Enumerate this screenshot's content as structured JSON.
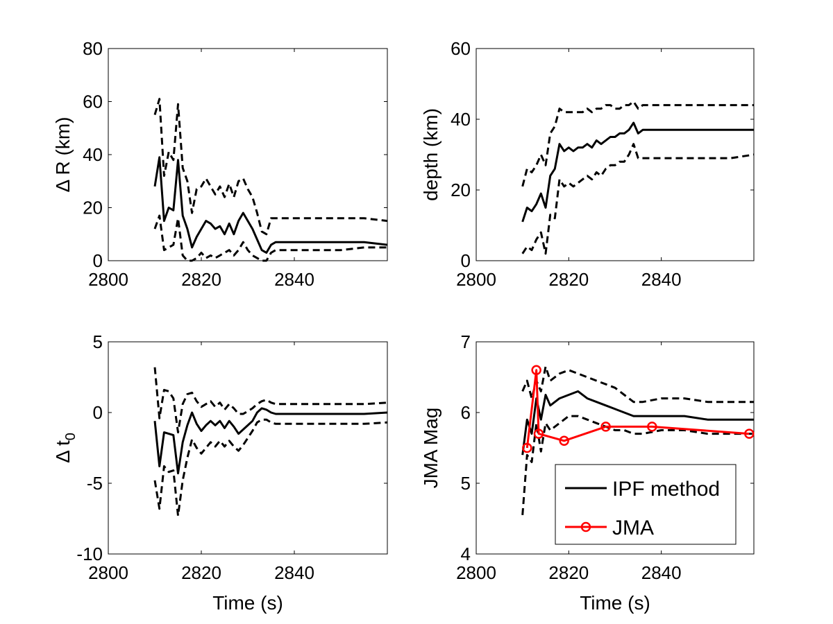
{
  "chart_data": [
    {
      "type": "line",
      "xlabel": "",
      "ylabel": "Δ R (km)",
      "xlim": [
        2800,
        2860
      ],
      "ylim": [
        0,
        80
      ],
      "xticks": [
        2800,
        2820,
        2840
      ],
      "yticks": [
        0,
        20,
        40,
        60,
        80
      ],
      "ytick_labels": [
        "0",
        "20",
        "40",
        "60",
        "80"
      ],
      "series": [
        {
          "style": "solid",
          "x": [
            2810,
            2811,
            2812,
            2813,
            2814,
            2815,
            2816,
            2817,
            2818,
            2819,
            2820,
            2821,
            2822,
            2823,
            2824,
            2825,
            2826,
            2827,
            2828,
            2829,
            2830,
            2831,
            2832,
            2833,
            2834,
            2835,
            2836,
            2840,
            2845,
            2850,
            2855,
            2860
          ],
          "y": [
            28,
            39,
            15,
            20,
            19,
            38,
            17,
            12,
            5,
            9,
            12,
            15,
            14,
            12,
            13,
            10,
            14,
            10,
            15,
            18,
            15,
            12,
            8,
            4,
            3,
            6,
            7,
            7,
            7,
            7,
            7,
            6
          ]
        },
        {
          "style": "dashed",
          "x": [
            2810,
            2811,
            2812,
            2813,
            2814,
            2815,
            2816,
            2817,
            2818,
            2819,
            2820,
            2821,
            2822,
            2823,
            2824,
            2825,
            2826,
            2827,
            2828,
            2829,
            2830,
            2831,
            2832,
            2833,
            2834,
            2835,
            2836,
            2840,
            2845,
            2850,
            2855,
            2860
          ],
          "y": [
            55,
            61,
            32,
            41,
            38,
            59,
            35,
            30,
            18,
            27,
            28,
            31,
            28,
            25,
            28,
            24,
            29,
            24,
            30,
            31,
            27,
            24,
            18,
            11,
            10,
            16,
            16,
            16,
            16,
            16,
            16,
            15
          ]
        },
        {
          "style": "dashed",
          "x": [
            2810,
            2811,
            2812,
            2813,
            2814,
            2815,
            2816,
            2817,
            2818,
            2819,
            2820,
            2821,
            2822,
            2823,
            2824,
            2825,
            2826,
            2827,
            2828,
            2829,
            2830,
            2831,
            2832,
            2833,
            2834,
            2835,
            2836,
            2840,
            2845,
            2850,
            2855,
            2860
          ],
          "y": [
            12,
            17,
            4,
            5,
            6,
            16,
            2,
            0,
            0,
            1,
            3,
            1,
            2,
            1,
            2,
            3,
            4,
            2,
            4,
            7,
            4,
            2,
            1,
            0,
            0,
            3,
            4,
            4,
            4,
            4,
            5,
            5
          ]
        }
      ]
    },
    {
      "type": "line",
      "xlabel": "",
      "ylabel": "depth (km)",
      "xlim": [
        2800,
        2860
      ],
      "ylim": [
        0,
        60
      ],
      "xticks": [
        2800,
        2820,
        2840
      ],
      "yticks": [
        0,
        20,
        40,
        60
      ],
      "ytick_labels": [
        "0",
        "20",
        "40",
        "60"
      ],
      "series": [
        {
          "style": "solid",
          "x": [
            2810,
            2811,
            2812,
            2813,
            2814,
            2815,
            2816,
            2817,
            2818,
            2819,
            2820,
            2821,
            2822,
            2823,
            2824,
            2825,
            2826,
            2827,
            2828,
            2829,
            2830,
            2831,
            2832,
            2833,
            2834,
            2835,
            2836,
            2840,
            2845,
            2850,
            2855,
            2860
          ],
          "y": [
            11,
            15,
            14,
            16,
            19,
            15,
            24,
            26,
            33,
            31,
            32,
            31,
            32,
            32,
            33,
            32,
            34,
            33,
            34,
            35,
            35,
            36,
            36,
            37,
            39,
            36,
            37,
            37,
            37,
            37,
            37,
            37
          ]
        },
        {
          "style": "dashed",
          "x": [
            2810,
            2811,
            2812,
            2813,
            2814,
            2815,
            2816,
            2817,
            2818,
            2819,
            2820,
            2821,
            2822,
            2823,
            2824,
            2825,
            2826,
            2827,
            2828,
            2829,
            2830,
            2831,
            2832,
            2833,
            2834,
            2835,
            2836,
            2840,
            2845,
            2850,
            2855,
            2860
          ],
          "y": [
            21,
            26,
            25,
            27,
            30,
            27,
            36,
            38,
            43,
            42,
            42,
            42,
            42,
            42,
            43,
            42,
            43,
            43,
            44,
            44,
            43,
            43,
            44,
            44,
            45,
            43,
            44,
            44,
            44,
            44,
            44,
            44
          ]
        },
        {
          "style": "dashed",
          "x": [
            2810,
            2811,
            2812,
            2813,
            2814,
            2815,
            2816,
            2817,
            2818,
            2819,
            2820,
            2821,
            2822,
            2823,
            2824,
            2825,
            2826,
            2827,
            2828,
            2829,
            2830,
            2831,
            2832,
            2833,
            2834,
            2835,
            2836,
            2840,
            2845,
            2850,
            2855,
            2860
          ],
          "y": [
            2,
            4,
            3,
            6,
            8,
            2,
            13,
            12,
            23,
            21,
            22,
            21,
            22,
            23,
            24,
            23,
            25,
            24,
            26,
            27,
            27,
            28,
            28,
            30,
            33,
            29,
            29,
            29,
            29,
            29,
            29,
            30
          ]
        }
      ]
    },
    {
      "type": "line",
      "xlabel": "Time (s)",
      "ylabel": "Δ t",
      "ylabel_subscript": "0",
      "xlim": [
        2800,
        2860
      ],
      "ylim": [
        -10,
        5
      ],
      "xticks": [
        2800,
        2820,
        2840
      ],
      "yticks": [
        -10,
        -5,
        0,
        5
      ],
      "ytick_labels": [
        "-10",
        "-5",
        "0",
        "5"
      ],
      "series": [
        {
          "style": "solid",
          "x": [
            2810,
            2811,
            2812,
            2813,
            2814,
            2815,
            2816,
            2817,
            2818,
            2819,
            2820,
            2821,
            2822,
            2823,
            2824,
            2825,
            2826,
            2827,
            2828,
            2829,
            2830,
            2831,
            2832,
            2833,
            2834,
            2835,
            2836,
            2840,
            2845,
            2850,
            2855,
            2860
          ],
          "y": [
            -0.6,
            -3.8,
            -1.4,
            -1.5,
            -1.6,
            -4.3,
            -2.1,
            -0.9,
            0.0,
            -0.8,
            -1.3,
            -0.9,
            -0.6,
            -0.9,
            -0.6,
            -1.1,
            -0.6,
            -1.0,
            -1.5,
            -1.2,
            -0.9,
            -0.6,
            0.0,
            0.3,
            0.2,
            0.0,
            -0.1,
            -0.1,
            -0.1,
            -0.1,
            -0.1,
            0.0
          ]
        },
        {
          "style": "dashed",
          "x": [
            2810,
            2811,
            2812,
            2813,
            2814,
            2815,
            2816,
            2817,
            2818,
            2819,
            2820,
            2821,
            2822,
            2823,
            2824,
            2825,
            2826,
            2827,
            2828,
            2829,
            2830,
            2831,
            2832,
            2833,
            2834,
            2835,
            2836,
            2840,
            2845,
            2850,
            2855,
            2860
          ],
          "y": [
            3.2,
            -0.4,
            1.6,
            1.5,
            1.0,
            -1.4,
            0.6,
            1.3,
            1.4,
            0.8,
            0.4,
            0.6,
            0.8,
            0.4,
            0.7,
            0.2,
            0.6,
            0.3,
            -0.1,
            -0.1,
            0.1,
            0.3,
            0.6,
            0.8,
            0.9,
            0.7,
            0.6,
            0.6,
            0.6,
            0.6,
            0.6,
            0.7
          ]
        },
        {
          "style": "dashed",
          "x": [
            2810,
            2811,
            2812,
            2813,
            2814,
            2815,
            2816,
            2817,
            2818,
            2819,
            2820,
            2821,
            2822,
            2823,
            2824,
            2825,
            2826,
            2827,
            2828,
            2829,
            2830,
            2831,
            2832,
            2833,
            2834,
            2835,
            2836,
            2840,
            2845,
            2850,
            2855,
            2860
          ],
          "y": [
            -4.8,
            -6.8,
            -3.8,
            -4.2,
            -4.1,
            -7.3,
            -4.8,
            -3.2,
            -1.9,
            -2.5,
            -2.9,
            -2.5,
            -2.1,
            -2.4,
            -2.0,
            -2.4,
            -2.0,
            -2.4,
            -2.7,
            -2.3,
            -1.8,
            -1.3,
            -0.7,
            -0.5,
            -0.5,
            -0.7,
            -0.8,
            -0.8,
            -0.8,
            -0.8,
            -0.8,
            -0.7
          ]
        }
      ]
    },
    {
      "type": "line",
      "xlabel": "Time (s)",
      "ylabel": "JMA Mag",
      "xlim": [
        2800,
        2860
      ],
      "ylim": [
        4,
        7
      ],
      "xticks": [
        2800,
        2820,
        2840
      ],
      "yticks": [
        4,
        5,
        6,
        7
      ],
      "ytick_labels": [
        "4",
        "5",
        "6",
        "7"
      ],
      "legend": {
        "position": "bottom-right",
        "entries": [
          "IPF method",
          "JMA"
        ]
      },
      "series": [
        {
          "name": "IPF method",
          "style": "solid",
          "color": "#000000",
          "x": [
            2810,
            2811,
            2812,
            2813,
            2814,
            2815,
            2816,
            2818,
            2820,
            2822,
            2824,
            2826,
            2828,
            2830,
            2832,
            2834,
            2836,
            2840,
            2845,
            2850,
            2855,
            2860
          ],
          "y": [
            5.4,
            5.9,
            5.7,
            6.2,
            5.9,
            6.25,
            6.1,
            6.2,
            6.25,
            6.3,
            6.2,
            6.15,
            6.1,
            6.05,
            6.0,
            5.95,
            5.95,
            5.95,
            5.95,
            5.9,
            5.9,
            5.9
          ]
        },
        {
          "style": "dashed",
          "color": "#000000",
          "x": [
            2810,
            2811,
            2812,
            2813,
            2814,
            2815,
            2816,
            2818,
            2820,
            2822,
            2824,
            2826,
            2828,
            2830,
            2832,
            2834,
            2836,
            2840,
            2845,
            2850,
            2855,
            2860
          ],
          "y": [
            6.3,
            6.45,
            6.2,
            6.45,
            6.3,
            6.65,
            6.45,
            6.55,
            6.6,
            6.55,
            6.5,
            6.45,
            6.4,
            6.35,
            6.25,
            6.15,
            6.15,
            6.2,
            6.2,
            6.15,
            6.15,
            6.15
          ]
        },
        {
          "style": "dashed",
          "color": "#000000",
          "x": [
            2810,
            2811,
            2812,
            2813,
            2814,
            2815,
            2816,
            2818,
            2820,
            2822,
            2824,
            2826,
            2828,
            2830,
            2832,
            2834,
            2836,
            2840,
            2845,
            2850,
            2855,
            2860
          ],
          "y": [
            4.55,
            5.4,
            5.3,
            5.85,
            5.45,
            5.85,
            5.75,
            5.85,
            5.95,
            5.95,
            5.9,
            5.85,
            5.8,
            5.75,
            5.75,
            5.7,
            5.7,
            5.75,
            5.75,
            5.7,
            5.7,
            5.7
          ]
        },
        {
          "name": "JMA",
          "style": "solid-markers",
          "color": "#ff0000",
          "x": [
            2811,
            2813,
            2813.5,
            2819,
            2828,
            2838,
            2859
          ],
          "y": [
            5.5,
            6.6,
            5.7,
            5.6,
            5.8,
            5.8,
            5.7
          ]
        }
      ]
    }
  ]
}
